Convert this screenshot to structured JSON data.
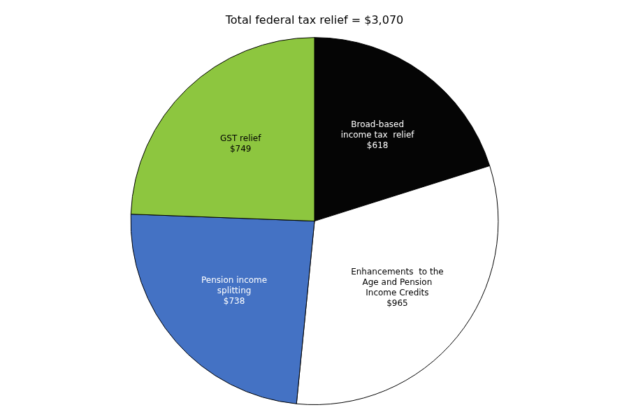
{
  "chart_data": {
    "type": "pie",
    "title": "Total federal tax relief = $3,070",
    "categories": [
      "Broad-based\nincome tax  relief\n$618",
      "Enhancements  to the\nAge and Pension\nIncome Credits\n$965",
      "Pension income\nsplitting\n$738",
      "GST relief\n$749"
    ],
    "values": [
      618,
      965,
      738,
      749
    ],
    "colors": [
      "#050505",
      "#ffffff",
      "#4472c4",
      "#8dc63f"
    ]
  }
}
